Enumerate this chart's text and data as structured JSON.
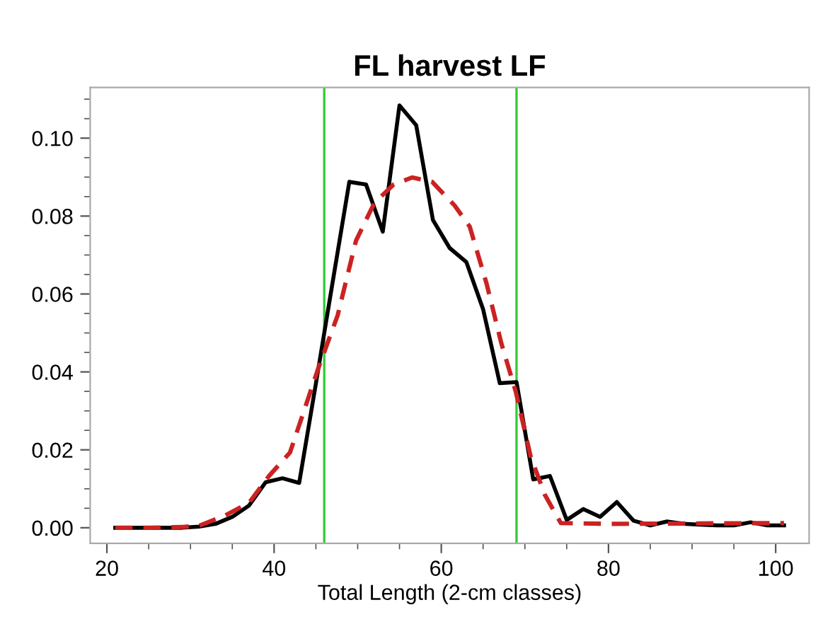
{
  "chart_data": {
    "type": "line",
    "title": "FL harvest LF",
    "xlabel": "Total Length (2-cm classes)",
    "xlim": [
      18,
      104
    ],
    "ylim": [
      -0.004,
      0.113
    ],
    "xticks": [
      20,
      {
        "value": 25,
        "label": null
      },
      {
        "value": 30,
        "label": null
      },
      {
        "value": 35,
        "label": null
      },
      40,
      {
        "value": 45,
        "label": null
      },
      {
        "value": 50,
        "label": null
      },
      {
        "value": 55,
        "label": null
      },
      60,
      {
        "value": 65,
        "label": null
      },
      {
        "value": 70,
        "label": null
      },
      {
        "value": 75,
        "label": null
      },
      80,
      {
        "value": 85,
        "label": null
      },
      {
        "value": 90,
        "label": null
      },
      {
        "value": 95,
        "label": null
      },
      100
    ],
    "yticks": [
      {
        "value": 0,
        "label": "0.00"
      },
      {
        "value": 0.005,
        "label": null
      },
      {
        "value": 0.01,
        "label": null
      },
      {
        "value": 0.015,
        "label": null
      },
      {
        "value": 0.02,
        "label": "0.02"
      },
      {
        "value": 0.025,
        "label": null
      },
      {
        "value": 0.03,
        "label": null
      },
      {
        "value": 0.035,
        "label": null
      },
      {
        "value": 0.04,
        "label": "0.04"
      },
      {
        "value": 0.045,
        "label": null
      },
      {
        "value": 0.05,
        "label": null
      },
      {
        "value": 0.055,
        "label": null
      },
      {
        "value": 0.06,
        "label": "0.06"
      },
      {
        "value": 0.065,
        "label": null
      },
      {
        "value": 0.07,
        "label": null
      },
      {
        "value": 0.075,
        "label": null
      },
      {
        "value": 0.08,
        "label": "0.08"
      },
      {
        "value": 0.085,
        "label": null
      },
      {
        "value": 0.09,
        "label": null
      },
      {
        "value": 0.095,
        "label": null
      },
      {
        "value": 0.1,
        "label": "0.10"
      },
      {
        "value": 0.105,
        "label": null
      },
      {
        "value": 0.11,
        "label": null
      }
    ],
    "grid": false,
    "legend": false,
    "marker": "none",
    "series": [
      {
        "color": "#000000",
        "line_style": "solid",
        "x": [
          21,
          23,
          25,
          27,
          29,
          31,
          33,
          35,
          37,
          39,
          41,
          43,
          45,
          47,
          49,
          51,
          53,
          55,
          57,
          59,
          61,
          63,
          65,
          67,
          69,
          71,
          73,
          75,
          77,
          79,
          81,
          83,
          85,
          87,
          89,
          91,
          93,
          95,
          97,
          99,
          101
        ],
        "values": [
          0,
          0,
          0,
          0,
          0,
          0.0003,
          0.001,
          0.0028,
          0.0057,
          0.0117,
          0.0127,
          0.0115,
          0.037,
          0.063,
          0.0888,
          0.0881,
          0.076,
          0.1084,
          0.1033,
          0.079,
          0.0718,
          0.0682,
          0.0561,
          0.0371,
          0.0374,
          0.0124,
          0.0133,
          0.002,
          0.0048,
          0.0028,
          0.0066,
          0.0018,
          0.0006,
          0.0016,
          0.001,
          0.0008,
          0.0006,
          0.0006,
          0.0014,
          0.0006,
          0.0006
        ]
      },
      {
        "color": "#cc2222",
        "line_style": "dashed",
        "x": [
          21,
          25,
          29,
          31,
          34,
          37,
          39.4,
          41.9,
          45.3,
          47.6,
          49.8,
          52,
          54.3,
          56.5,
          58.9,
          61.6,
          63.4,
          65.4,
          67.2,
          68.9,
          70.7,
          72.4,
          74.3,
          80,
          90,
          101
        ],
        "values": [
          0,
          0,
          0.0002,
          0.0005,
          0.003,
          0.0064,
          0.0133,
          0.0193,
          0.041,
          0.0545,
          0.0737,
          0.0834,
          0.0881,
          0.0899,
          0.0888,
          0.0827,
          0.0773,
          0.0628,
          0.0472,
          0.035,
          0.0182,
          0.0084,
          0.0012,
          0.001,
          0.0011,
          0.0012
        ]
      }
    ],
    "ref_lines": [
      {
        "axis": "x",
        "value": 46,
        "color": "#33cc33"
      },
      {
        "axis": "x",
        "value": 69,
        "color": "#33cc33"
      }
    ]
  }
}
